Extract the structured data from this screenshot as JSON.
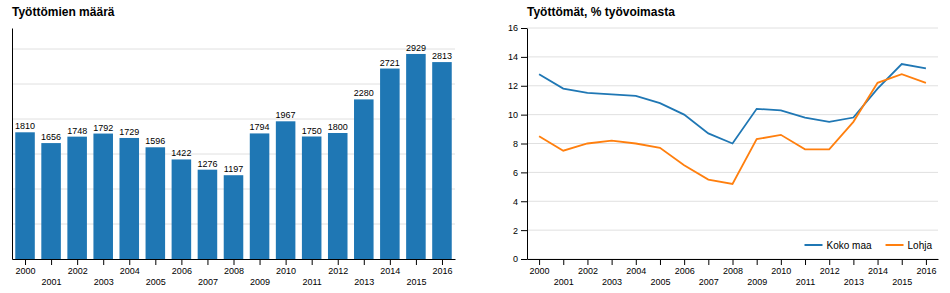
{
  "chart_data": [
    {
      "type": "bar",
      "title": "Työttömien määrä",
      "x": [
        2000,
        2001,
        2002,
        2003,
        2004,
        2005,
        2006,
        2007,
        2008,
        2009,
        2010,
        2011,
        2012,
        2013,
        2014,
        2015,
        2016
      ],
      "values": [
        1810,
        1656,
        1748,
        1792,
        1729,
        1596,
        1422,
        1276,
        1197,
        1794,
        1967,
        1750,
        1800,
        2280,
        2721,
        2929,
        2813
      ],
      "xlim": [
        1999.5,
        2016.5
      ],
      "xticks": [
        2000,
        2001,
        2002,
        2003,
        2004,
        2005,
        2006,
        2007,
        2008,
        2009,
        2010,
        2011,
        2012,
        2013,
        2014,
        2015,
        2016
      ],
      "ylim": [
        0,
        3300
      ],
      "yticks": [
        500,
        1000,
        1500,
        2000,
        2500,
        3000
      ],
      "grid": true,
      "data_labels": true,
      "tick_labels": "x"
    },
    {
      "type": "line",
      "title": "Työttömät, % työvoimasta",
      "x": [
        2000,
        2001,
        2002,
        2003,
        2004,
        2005,
        2006,
        2007,
        2008,
        2009,
        2010,
        2011,
        2012,
        2013,
        2014,
        2015,
        2016
      ],
      "series": [
        {
          "name": "Koko maa",
          "values": [
            12.8,
            11.8,
            11.5,
            11.4,
            11.3,
            10.8,
            10.0,
            8.7,
            8.0,
            10.4,
            10.3,
            9.8,
            9.5,
            9.8,
            11.8,
            13.5,
            13.2
          ]
        },
        {
          "name": "Lohja",
          "values": [
            8.5,
            7.5,
            8.0,
            8.2,
            8.0,
            7.7,
            6.5,
            5.5,
            5.2,
            8.3,
            8.6,
            7.6,
            7.6,
            9.5,
            12.2,
            12.8,
            12.2
          ]
        }
      ],
      "xlim": [
        1999.5,
        2016.5
      ],
      "xticks": [
        2000,
        2001,
        2002,
        2003,
        2004,
        2005,
        2006,
        2007,
        2008,
        2009,
        2010,
        2011,
        2012,
        2013,
        2014,
        2015,
        2016
      ],
      "ylim": [
        0,
        16
      ],
      "yticks": [
        0,
        2,
        4,
        6,
        8,
        10,
        12,
        14,
        16
      ],
      "grid": true,
      "legend": "lower right"
    }
  ]
}
